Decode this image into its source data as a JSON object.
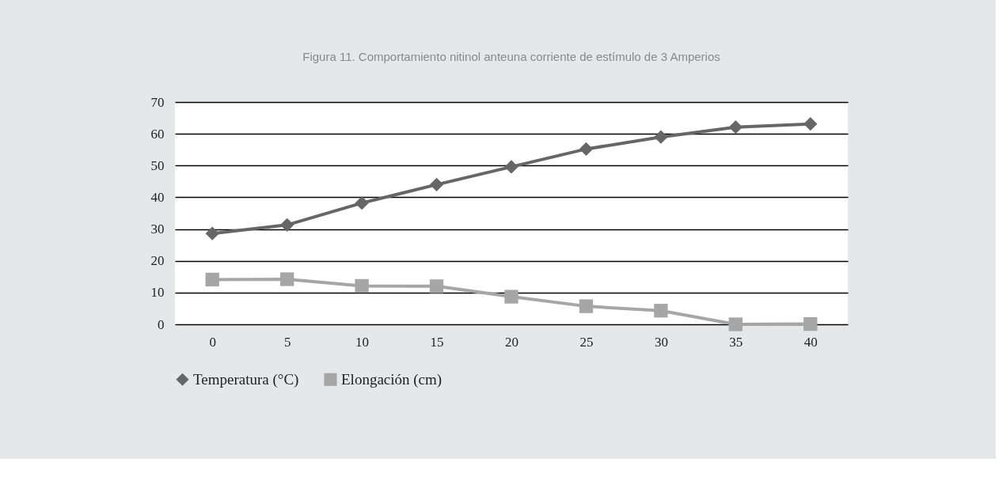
{
  "chart_data": {
    "type": "line",
    "title": "Figura 11. Comportamiento nitinol anteuna corriente de estímulo de 3 Amperios",
    "categories": [
      "0",
      "5",
      "10",
      "15",
      "20",
      "25",
      "30",
      "35",
      "40"
    ],
    "series": [
      {
        "name": "Temperatura (°C)",
        "color": "#666666",
        "marker": "diamond",
        "values": [
          28.6,
          31.3,
          38.2,
          44.0,
          49.6,
          55.2,
          59.0,
          62.1,
          63.1
        ]
      },
      {
        "name": "Elongación (cm)",
        "color": "#a6a6a6",
        "marker": "square",
        "values": [
          14.1,
          14.2,
          12.1,
          12.0,
          8.7,
          5.7,
          4.3,
          0,
          0.1
        ]
      }
    ],
    "ylim": [
      0,
      70
    ],
    "yticks": [
      0,
      10,
      20,
      30,
      40,
      50,
      60,
      70
    ],
    "grid": "y",
    "legend": "bottom",
    "line_style": "solid"
  }
}
